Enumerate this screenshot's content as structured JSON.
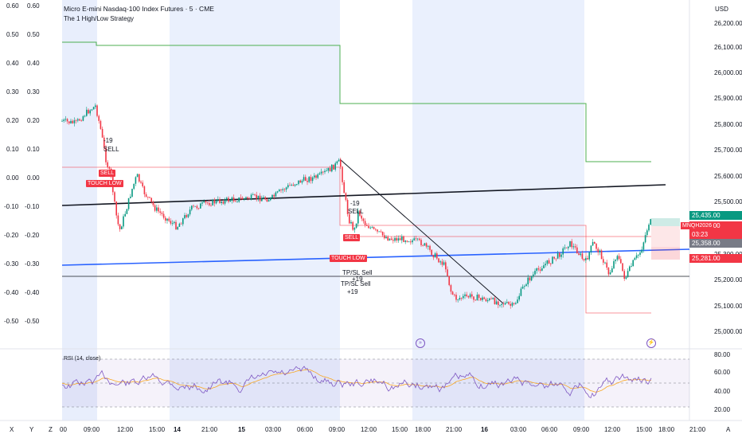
{
  "header": {
    "title": "Micro E-mini Nasdaq-100 Index Futures · 5 · CME",
    "subtitle": "The 1 High/Low Strategy",
    "currency": "USD"
  },
  "left_axis_1": [
    "0.60",
    "0.50",
    "0.40",
    "0.30",
    "0.20",
    "0.10",
    "0.00",
    "-0.10",
    "-0.20",
    "-0.30",
    "-0.40",
    "-0.50"
  ],
  "left_axis_2": [
    "0.60",
    "0.50",
    "0.40",
    "0.30",
    "0.20",
    "0.10",
    "0.00",
    "-0.10",
    "-0.20",
    "-0.30",
    "-0.40",
    "-0.50"
  ],
  "price_axis": [
    "26,200.00",
    "26,100.00",
    "26,000.00",
    "25,900.00",
    "25,800.00",
    "25,700.00",
    "25,600.00",
    "25,500.00",
    "25,400.00",
    "25,300.00",
    "25,200.00",
    "25,100.00",
    "25,000.00"
  ],
  "rsi_axis": [
    "80.00",
    "60.00",
    "40.00",
    "20.00"
  ],
  "time_axis": [
    "00",
    "09:00",
    "12:00",
    "15:00",
    "14",
    "21:00",
    "15",
    "03:00",
    "06:00",
    "09:00",
    "12:00",
    "15:00",
    "18:00",
    "21:00",
    "16",
    "03:00",
    "06:00",
    "09:00",
    "12:00",
    "15:00",
    "18:00",
    "21:00"
  ],
  "time_axis_bold": [
    "14",
    "15",
    "16"
  ],
  "corner_labels": [
    "X",
    "Y",
    "Z",
    "A"
  ],
  "price_tags": [
    {
      "text": "25,435.00",
      "color": "#089981"
    },
    {
      "text": "25,413.00",
      "color": "#f23645"
    },
    {
      "text": "03:23",
      "color": "#f23645"
    },
    {
      "text": "25,358.00",
      "color": "#787b86"
    },
    {
      "text": "25,281.00",
      "color": "#f23645"
    }
  ],
  "symbol_tag": "MNQH2026",
  "trade_labels": [
    {
      "text": "-19"
    },
    {
      "text": "SELL"
    },
    {
      "text": "SELL"
    },
    {
      "text": "TOUCH LOW"
    },
    {
      "text": "-19"
    },
    {
      "text": "SELL"
    },
    {
      "text": "SELL"
    },
    {
      "text": "TOUCH LOW"
    },
    {
      "text": "TP/SL Sell"
    },
    {
      "text": "+19"
    },
    {
      "text": "TP/SL Sell"
    },
    {
      "text": "+19"
    }
  ],
  "rsi_label": "RSI (14, close)",
  "event_markers": [
    "»",
    "⚡"
  ],
  "colors": {
    "session_bg": "#e8eefc",
    "up": "#089981",
    "down": "#f23645",
    "high_line": "#4caf50",
    "low_line": "#f23645",
    "blue_line": "#2962ff",
    "rsi_line": "#7e57c2",
    "rsi_ma": "#f9a825"
  }
}
